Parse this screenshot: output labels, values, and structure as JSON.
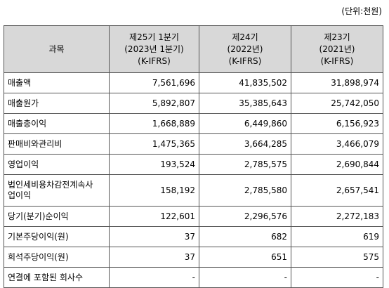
{
  "unit_note": "(단위:천원)",
  "header": {
    "label": "과목",
    "columns": [
      {
        "line1": "제25기 1분기",
        "line2": "(2023년 1분기)",
        "line3": "(K-IFRS)"
      },
      {
        "line1": "제24기",
        "line2": "(2022년)",
        "line3": "(K-IFRS)"
      },
      {
        "line1": "제23기",
        "line2": "(2021년)",
        "line3": "(K-IFRS)"
      }
    ]
  },
  "rows": [
    {
      "label": "매출액",
      "values": [
        "7,561,696",
        "41,835,502",
        "31,898,974"
      ]
    },
    {
      "label": "매출원가",
      "values": [
        "5,892,807",
        "35,385,643",
        "25,742,050"
      ]
    },
    {
      "label": "매출총이익",
      "values": [
        "1,668,889",
        "6,449,860",
        "6,156,923"
      ]
    },
    {
      "label": "판매비와관리비",
      "values": [
        "1,475,365",
        "3,664,285",
        "3,466,079"
      ]
    },
    {
      "label": "영업이익",
      "values": [
        "193,524",
        "2,785,575",
        "2,690,844"
      ]
    },
    {
      "label_line1": "법인세비용차감전계속사",
      "label_line2": "업이익",
      "values": [
        "158,192",
        "2,785,580",
        "2,657,541"
      ]
    },
    {
      "label": "당기(분기)순이익",
      "values": [
        "122,601",
        "2,296,576",
        "2,272,183"
      ]
    },
    {
      "label": "기본주당이익(원)",
      "values": [
        "37",
        "682",
        "619"
      ]
    },
    {
      "label": "희석주당이익(원)",
      "values": [
        "37",
        "651",
        "575"
      ]
    },
    {
      "label": "연결에 포함된 회사수",
      "values": [
        "-",
        "-",
        "-"
      ]
    }
  ]
}
